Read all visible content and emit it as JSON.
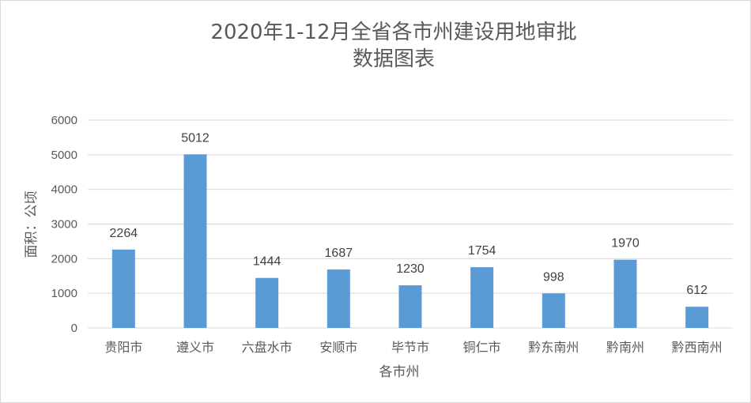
{
  "chart_data": {
    "type": "bar",
    "title": [
      "2020年1-12月全省各市州建设用地审批",
      "数据图表"
    ],
    "xlabel": "各市州",
    "ylabel": "面积：公顷",
    "categories": [
      "贵阳市",
      "遵义市",
      "六盘水市",
      "安顺市",
      "毕节市",
      "铜仁市",
      "黔东南州",
      "黔南州",
      "黔西南州"
    ],
    "values": [
      2264,
      5012,
      1444,
      1687,
      1230,
      1754,
      998,
      1970,
      612
    ],
    "ylim": [
      0,
      6000
    ],
    "yticks": [
      0,
      1000,
      2000,
      3000,
      4000,
      5000,
      6000
    ],
    "grid": true,
    "legend": "none",
    "data_labels": true,
    "colors": {
      "bar": "#5b9bd5",
      "grid": "#d9d9d9",
      "text": "#595959"
    }
  }
}
